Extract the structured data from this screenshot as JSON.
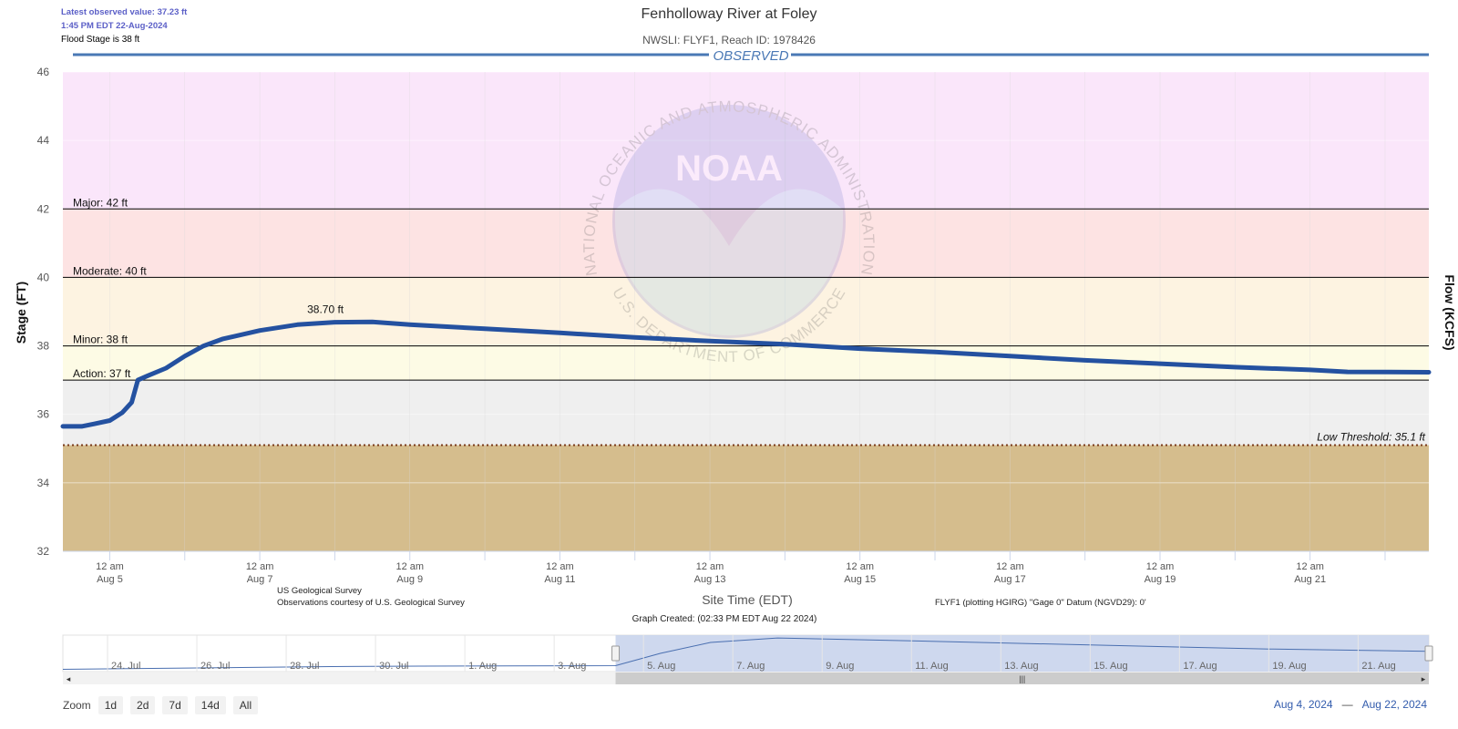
{
  "header": {
    "latest_value": "Latest observed value: 37.23 ft",
    "latest_time": "1:45 PM EDT 22-Aug-2024",
    "flood_stage_note": "Flood Stage is 38 ft",
    "title": "Fenholloway River at Foley",
    "subtitle": "NWSLI: FLYF1, Reach ID: 1978426",
    "band_label": "OBSERVED"
  },
  "watermark": {
    "logo_text": "NOAA",
    "ring_top": "NATIONAL OCEANIC AND ATMOSPHERIC ADMINISTRATION",
    "ring_bottom": "U.S. DEPARTMENT OF COMMERCE"
  },
  "footer": {
    "source_line1": "US Geological Survey",
    "source_line2": "Observations courtesy of U.S. Geological Survey",
    "datum": "FLYF1 (plotting HGIRG) \"Gage 0\" Datum (NGVD29): 0'",
    "graph_created": "Graph Created: (02:33 PM EDT Aug 22 2024)"
  },
  "zoom": {
    "label": "Zoom",
    "buttons": [
      "1d",
      "2d",
      "7d",
      "14d",
      "All"
    ]
  },
  "range": {
    "from": "Aug 4, 2024",
    "to": "Aug 22, 2024",
    "sep": "—"
  },
  "colors": {
    "series": "#2451a0",
    "major_band": "#fae6fa",
    "moderate_band": "#fde3e3",
    "minor_band": "#fdf3e1",
    "action_band": "#fdfbe5",
    "normal_band": "#efefef",
    "low_band": "#d5bd8d",
    "navigator_fill": "#c9d4ec"
  },
  "chart_data": {
    "type": "line",
    "title": "Fenholloway River at Foley",
    "subtitle": "NWSLI: FLYF1, Reach ID: 1978426",
    "xlabel": "Site Time (EDT)",
    "ylabel": "Stage (FT)",
    "ylabel_right": "Flow (KCFS)",
    "ylim": [
      32,
      46
    ],
    "yticks": [
      32,
      34,
      36,
      38,
      40,
      42,
      44,
      46
    ],
    "xlim": [
      "2024-08-04 09:00",
      "2024-08-22 14:00"
    ],
    "xticks": [
      {
        "date": "2024-08-05 00:00",
        "line1": "12 am",
        "line2": "Aug 5"
      },
      {
        "date": "2024-08-07 00:00",
        "line1": "12 am",
        "line2": "Aug 7"
      },
      {
        "date": "2024-08-09 00:00",
        "line1": "12 am",
        "line2": "Aug 9"
      },
      {
        "date": "2024-08-11 00:00",
        "line1": "12 am",
        "line2": "Aug 11"
      },
      {
        "date": "2024-08-13 00:00",
        "line1": "12 am",
        "line2": "Aug 13"
      },
      {
        "date": "2024-08-15 00:00",
        "line1": "12 am",
        "line2": "Aug 15"
      },
      {
        "date": "2024-08-17 00:00",
        "line1": "12 am",
        "line2": "Aug 17"
      },
      {
        "date": "2024-08-19 00:00",
        "line1": "12 am",
        "line2": "Aug 19"
      },
      {
        "date": "2024-08-21 00:00",
        "line1": "12 am",
        "line2": "Aug 21"
      }
    ],
    "thresholds": [
      {
        "name": "Major",
        "label": "Major: 42 ft",
        "value": 42
      },
      {
        "name": "Moderate",
        "label": "Moderate: 40 ft",
        "value": 40
      },
      {
        "name": "Minor",
        "label": "Minor: 38 ft",
        "value": 38
      },
      {
        "name": "Action",
        "label": "Action: 37 ft",
        "value": 37
      },
      {
        "name": "Low Threshold",
        "label": "Low Threshold: 35.1 ft",
        "value": 35.1
      }
    ],
    "peak_label": {
      "text": "38.70 ft",
      "date": "2024-08-07 21:00",
      "value": 38.7
    },
    "series": [
      {
        "points": [
          [
            "2024-08-04 09:00",
            35.65
          ],
          [
            "2024-08-04 15:00",
            35.65
          ],
          [
            "2024-08-04 19:00",
            35.72
          ],
          [
            "2024-08-05 00:00",
            35.82
          ],
          [
            "2024-08-05 04:00",
            36.05
          ],
          [
            "2024-08-05 07:00",
            36.35
          ],
          [
            "2024-08-05 09:00",
            37.0
          ],
          [
            "2024-08-05 12:00",
            37.12
          ],
          [
            "2024-08-05 18:00",
            37.35
          ],
          [
            "2024-08-06 00:00",
            37.7
          ],
          [
            "2024-08-06 06:00",
            38.0
          ],
          [
            "2024-08-06 12:00",
            38.2
          ],
          [
            "2024-08-07 00:00",
            38.45
          ],
          [
            "2024-08-07 12:00",
            38.62
          ],
          [
            "2024-08-08 00:00",
            38.69
          ],
          [
            "2024-08-08 12:00",
            38.7
          ],
          [
            "2024-08-09 00:00",
            38.62
          ],
          [
            "2024-08-10 00:00",
            38.5
          ],
          [
            "2024-08-11 00:00",
            38.38
          ],
          [
            "2024-08-12 00:00",
            38.25
          ],
          [
            "2024-08-13 00:00",
            38.14
          ],
          [
            "2024-08-14 00:00",
            38.05
          ],
          [
            "2024-08-15 00:00",
            37.92
          ],
          [
            "2024-08-16 00:00",
            37.82
          ],
          [
            "2024-08-17 00:00",
            37.7
          ],
          [
            "2024-08-18 00:00",
            37.58
          ],
          [
            "2024-08-19 00:00",
            37.48
          ],
          [
            "2024-08-20 00:00",
            37.38
          ],
          [
            "2024-08-21 00:00",
            37.3
          ],
          [
            "2024-08-21 12:00",
            37.24
          ],
          [
            "2024-08-22 14:00",
            37.23
          ]
        ]
      }
    ],
    "navigator": {
      "xticks": [
        "24. Jul",
        "26. Jul",
        "28. Jul",
        "30. Jul",
        "1. Aug",
        "3. Aug",
        "5. Aug",
        "7. Aug",
        "9. Aug",
        "11. Aug",
        "13. Aug",
        "15. Aug",
        "17. Aug",
        "19. Aug",
        "21. Aug"
      ],
      "range_from": "2024-08-04 09:00",
      "range_to": "2024-08-22 14:00",
      "xlim": [
        "2024-07-23 00:00",
        "2024-08-22 14:00"
      ],
      "points": [
        [
          "2024-07-23 00:00",
          35.25
        ],
        [
          "2024-07-25 00:00",
          35.35
        ],
        [
          "2024-07-27 00:00",
          35.45
        ],
        [
          "2024-07-29 00:00",
          35.55
        ],
        [
          "2024-07-31 00:00",
          35.6
        ],
        [
          "2024-08-02 00:00",
          35.63
        ],
        [
          "2024-08-04 09:00",
          35.65
        ],
        [
          "2024-08-05 09:00",
          37.0
        ],
        [
          "2024-08-06 12:00",
          38.2
        ],
        [
          "2024-08-08 00:00",
          38.69
        ],
        [
          "2024-08-11 00:00",
          38.38
        ],
        [
          "2024-08-15 00:00",
          37.92
        ],
        [
          "2024-08-19 00:00",
          37.48
        ],
        [
          "2024-08-22 14:00",
          37.23
        ]
      ]
    },
    "grid": true,
    "legend": "none"
  }
}
